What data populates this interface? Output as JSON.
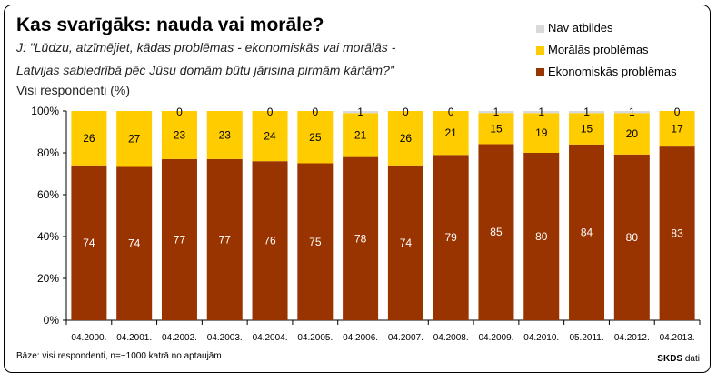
{
  "header": {
    "title": "Kas svarīgāks: nauda vai morāle?",
    "question_line1": "J: \"Lūdzu, atzīmējiet, kādas problēmas - ekonomiskās vai morālās -",
    "question_line2": "Latvijas sabiedrībā pēc Jūsu domām būtu jārisina pirmām kārtām?\"",
    "subtitle": "Visi respondenti (%)"
  },
  "footer": {
    "base_note": "Bāze:  visi respondenti, n=~1000 katrā no aptaujām",
    "source_main": "SKDS",
    "source_suffix": " dati"
  },
  "colors": {
    "economic": "#993300",
    "moral": "#FFCC00",
    "no_answer": "#D9D9D9",
    "grid": "#000000"
  },
  "chart_data": {
    "type": "bar",
    "stacked": true,
    "normalized": true,
    "categories": [
      "04.2000.",
      "04.2001.",
      "04.2002.",
      "04.2003.",
      "04.2004.",
      "04.2005.",
      "04.2006.",
      "04.2007.",
      "04.2008.",
      "04.2009.",
      "04.2010.",
      "05.2011.",
      "04.2012.",
      "04.2013."
    ],
    "series": [
      {
        "name": "Ekonomiskās problēmas",
        "color": "#993300",
        "values": [
          74,
          74,
          77,
          77,
          76,
          75,
          78,
          74,
          79,
          85,
          80,
          84,
          80,
          83
        ]
      },
      {
        "name": "Morālās problēmas",
        "color": "#FFCC00",
        "values": [
          26,
          27,
          23,
          23,
          24,
          25,
          21,
          26,
          21,
          15,
          19,
          15,
          20,
          17
        ]
      },
      {
        "name": "Nav atbildes",
        "color": "#D9D9D9",
        "values": [
          null,
          null,
          0,
          null,
          0,
          0,
          1,
          0,
          0,
          1,
          1,
          1,
          1,
          0
        ]
      }
    ],
    "yticks": [
      "0%",
      "20%",
      "40%",
      "60%",
      "80%",
      "100%"
    ],
    "ylim": [
      0,
      100
    ],
    "grid": false,
    "legend_position": "top-right"
  }
}
